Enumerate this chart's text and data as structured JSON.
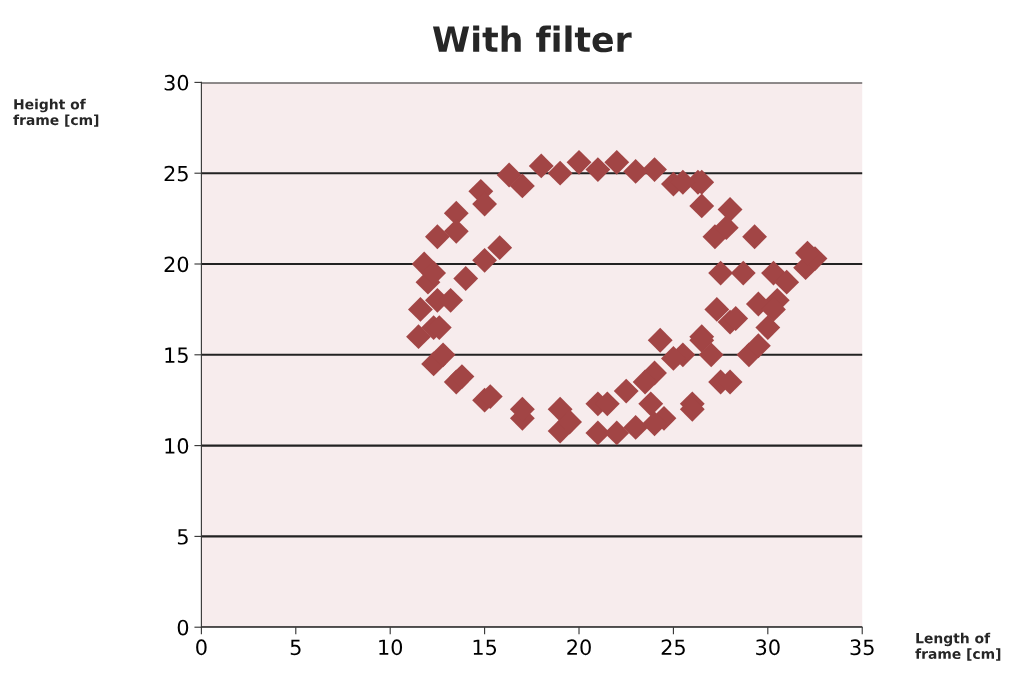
{
  "chart_data": {
    "type": "scatter",
    "title": "With filter",
    "xlabel": "Length of\nframe [cm]",
    "ylabel": "Height of\nframe [cm]",
    "marker": "diamond",
    "grid": "y",
    "xlim": [
      0,
      35
    ],
    "ylim": [
      0,
      30
    ],
    "xticks": [
      0,
      5,
      10,
      15,
      20,
      25,
      30,
      35
    ],
    "yticks": [
      0,
      5,
      10,
      15,
      20,
      25,
      30
    ],
    "series": [
      {
        "color": "#a24545",
        "x": [
          11.8,
          12.5,
          13.5,
          14.8,
          16.3,
          18,
          20,
          22,
          24,
          26.3,
          28,
          29.3,
          30.3,
          30.5,
          30,
          29,
          27.5,
          26,
          24.5,
          23,
          21,
          19,
          17,
          15,
          13.5,
          12.3,
          11.5,
          11.6,
          12,
          12.3,
          13.5,
          15,
          17,
          19,
          21,
          23,
          25,
          26.5,
          27.2,
          27.5,
          27.3,
          26.5,
          25.5,
          24,
          22.5,
          21,
          19,
          17,
          15.3,
          13.8,
          12.8,
          12.3,
          12.5,
          15.8,
          15,
          14,
          13.2,
          12.6,
          19.5,
          21.5,
          23.5,
          25,
          26.5,
          28,
          29.5,
          31,
          32,
          32.5,
          32.1,
          24.3,
          23.8,
          26.5,
          25.5,
          27.8,
          28.7,
          28.3,
          27,
          22,
          24,
          26,
          28,
          29.5,
          30.3
        ],
        "values": [
          20,
          21.5,
          22.8,
          24,
          24.9,
          25.4,
          25.6,
          25.6,
          25.2,
          24.5,
          23,
          21.5,
          19.5,
          18,
          16.5,
          15,
          13.5,
          12.3,
          11.5,
          11,
          10.7,
          10.8,
          11.5,
          12.5,
          13.5,
          14.5,
          16,
          17.5,
          19,
          19.5,
          21.8,
          23.3,
          24.3,
          25,
          25.2,
          25.1,
          24.4,
          23.2,
          21.5,
          19.5,
          17.5,
          16,
          15,
          14,
          13,
          12.3,
          12,
          12,
          12.7,
          13.8,
          15,
          16.5,
          18,
          20.9,
          20.2,
          19.2,
          18,
          16.5,
          11.3,
          12.3,
          13.5,
          14.8,
          15.8,
          16.8,
          17.8,
          19,
          19.8,
          20.3,
          20.6,
          15.8,
          12.3,
          24.5,
          24.5,
          22,
          19.5,
          17,
          15,
          10.7,
          11.2,
          12,
          13.5,
          15.5,
          17.5
        ]
      }
    ]
  }
}
